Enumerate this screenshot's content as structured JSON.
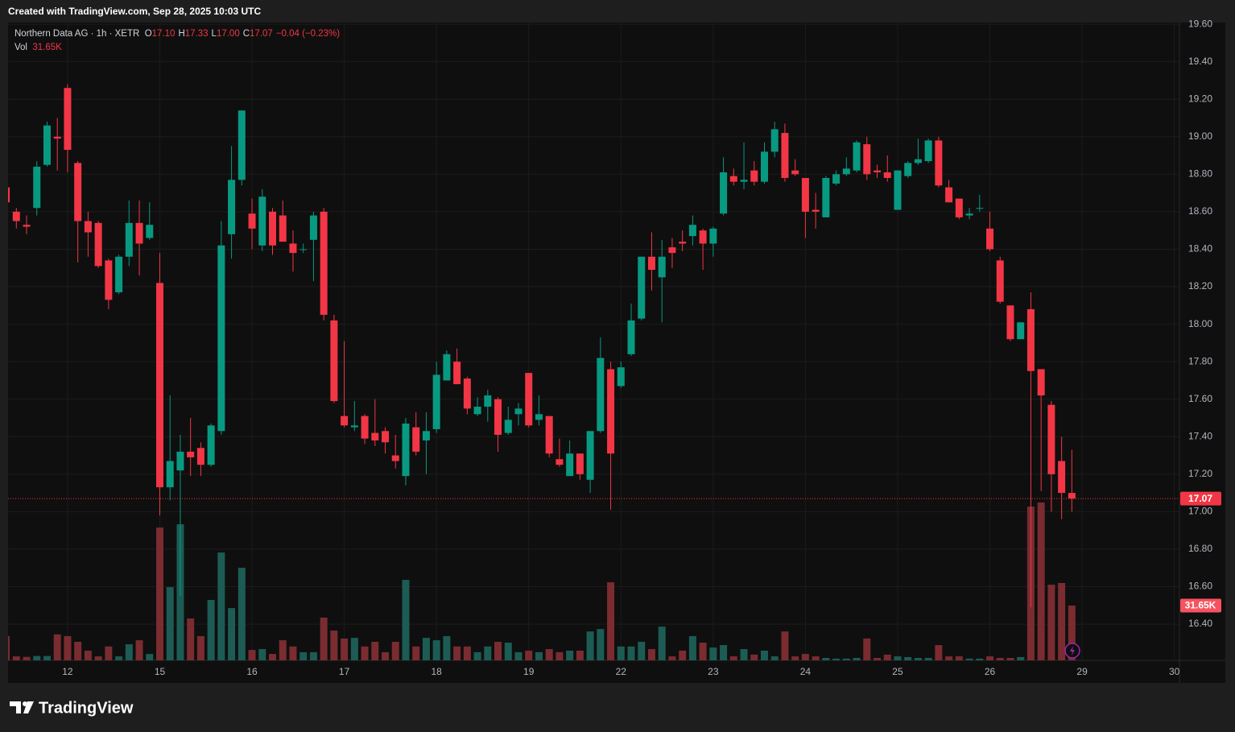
{
  "header": {
    "credit": "Created with TradingView.com, Sep 28, 2025 10:03 UTC",
    "symbol": "Northern Data AG · 1h · XETR",
    "ohlc": [
      {
        "key": "O",
        "value": "17.10"
      },
      {
        "key": "H",
        "value": "17.33"
      },
      {
        "key": "L",
        "value": "17.00"
      },
      {
        "key": "C",
        "value": "17.07"
      }
    ],
    "change": "−0.04 (−0.23%)",
    "volume_key": "Vol",
    "volume": "31.65K"
  },
  "brand": "TradingView",
  "chart_data": {
    "type": "candlestick",
    "categories": [
      null,
      null,
      null,
      null,
      null,
      null,
      "12",
      null,
      null,
      null,
      null,
      null,
      null,
      null,
      null,
      "15",
      null,
      null,
      null,
      null,
      null,
      null,
      null,
      null,
      "16",
      null,
      null,
      null,
      null,
      null,
      null,
      null,
      null,
      "17",
      null,
      null,
      null,
      null,
      null,
      null,
      null,
      null,
      "18",
      null,
      null,
      null,
      null,
      null,
      null,
      null,
      null,
      "19",
      null,
      null,
      null,
      null,
      null,
      null,
      null,
      null,
      "22",
      null,
      null,
      null,
      null,
      null,
      null,
      null,
      null,
      "23",
      null,
      null,
      null,
      null,
      null,
      null,
      null,
      null,
      "24",
      null,
      null,
      null,
      null,
      null,
      null,
      null,
      null,
      "25",
      null,
      null,
      null,
      null,
      null,
      null,
      null,
      null,
      "26",
      null,
      null,
      null,
      null,
      null,
      null,
      null,
      null,
      "29",
      null,
      null,
      null,
      null,
      null,
      null,
      null,
      null,
      "30"
    ],
    "open": [
      18.73,
      18.6,
      18.53,
      18.62,
      18.85,
      19.0,
      19.26,
      18.86,
      18.55,
      18.54,
      18.34,
      18.17,
      18.36,
      18.54,
      18.46,
      18.22,
      17.13,
      17.22,
      17.32,
      17.34,
      17.25,
      17.43,
      18.48,
      18.77,
      18.59,
      18.42,
      18.6,
      18.58,
      18.43,
      18.4,
      18.45,
      18.6,
      18.02,
      17.51,
      17.45,
      17.51,
      17.42,
      17.43,
      17.3,
      17.19,
      17.45,
      17.38,
      17.44,
      17.7,
      17.8,
      17.71,
      17.52,
      17.56,
      17.6,
      17.42,
      17.52,
      17.74,
      17.49,
      17.51,
      17.28,
      17.19,
      17.31,
      17.17,
      17.43,
      17.76,
      17.67,
      17.84,
      18.03,
      18.36,
      18.25,
      18.41,
      18.44,
      18.47,
      18.5,
      18.43,
      18.59,
      18.79,
      18.76,
      18.82,
      18.76,
      18.92,
      19.02,
      18.82,
      18.78,
      18.61,
      18.57,
      18.75,
      18.8,
      18.82,
      18.96,
      18.82,
      18.81,
      18.61,
      18.79,
      18.86,
      18.87,
      18.98,
      18.73,
      18.67,
      18.58,
      18.62,
      18.51,
      18.34,
      18.1,
      17.92,
      18.08,
      17.76,
      17.57,
      17.27,
      17.1,
      null,
      null,
      null,
      null,
      null,
      null,
      null,
      null,
      null,
      null
    ],
    "high": [
      18.78,
      18.62,
      18.58,
      18.87,
      19.08,
      19.1,
      19.28,
      18.87,
      18.6,
      18.55,
      18.35,
      18.37,
      18.66,
      18.66,
      18.65,
      18.38,
      17.62,
      17.41,
      17.5,
      17.37,
      17.47,
      18.55,
      18.95,
      19.14,
      18.67,
      18.72,
      18.62,
      18.66,
      18.5,
      18.43,
      18.6,
      18.62,
      18.05,
      17.91,
      17.59,
      17.52,
      17.6,
      17.45,
      17.41,
      17.5,
      17.53,
      17.53,
      17.8,
      17.86,
      17.87,
      17.72,
      17.61,
      17.65,
      17.61,
      17.56,
      17.58,
      17.74,
      17.62,
      17.51,
      17.39,
      17.38,
      17.31,
      17.43,
      17.93,
      17.8,
      17.8,
      18.11,
      18.36,
      18.49,
      18.45,
      18.46,
      18.5,
      18.58,
      18.51,
      18.52,
      18.89,
      18.83,
      18.97,
      18.87,
      18.97,
      19.08,
      19.07,
      18.88,
      18.78,
      18.7,
      18.79,
      18.82,
      18.89,
      18.98,
      19.0,
      18.85,
      18.9,
      18.82,
      18.87,
      18.99,
      18.99,
      19.0,
      18.77,
      18.67,
      18.62,
      18.69,
      18.6,
      18.36,
      18.1,
      18.01,
      18.17,
      17.76,
      17.59,
      17.4,
      17.33,
      null,
      null,
      null,
      null,
      null,
      null,
      null,
      null,
      null,
      null
    ],
    "low": [
      18.6,
      18.51,
      18.48,
      18.58,
      18.84,
      18.82,
      18.81,
      18.33,
      18.36,
      18.3,
      18.08,
      18.16,
      18.31,
      18.26,
      18.45,
      16.98,
      17.06,
      16.55,
      17.19,
      17.19,
      17.24,
      17.41,
      18.35,
      18.74,
      18.4,
      18.39,
      18.37,
      18.44,
      18.28,
      18.38,
      18.23,
      18.02,
      17.58,
      17.45,
      17.43,
      17.36,
      17.35,
      17.31,
      17.23,
      17.14,
      17.3,
      17.2,
      17.42,
      17.7,
      17.68,
      17.52,
      17.51,
      17.48,
      17.32,
      17.41,
      17.46,
      17.45,
      17.46,
      17.29,
      17.24,
      17.19,
      17.17,
      17.1,
      17.42,
      17.01,
      17.66,
      17.83,
      18.02,
      18.18,
      18.01,
      18.3,
      18.39,
      18.42,
      18.29,
      18.36,
      18.58,
      18.74,
      18.72,
      18.74,
      18.75,
      18.89,
      18.76,
      18.79,
      18.46,
      18.51,
      18.57,
      18.74,
      18.79,
      18.81,
      18.77,
      18.78,
      18.76,
      18.61,
      18.78,
      18.85,
      18.86,
      18.73,
      18.65,
      18.56,
      18.56,
      18.6,
      18.39,
      18.11,
      17.91,
      17.92,
      16.49,
      17.11,
      17.0,
      16.96,
      17.0,
      null,
      null,
      null,
      null,
      null,
      null,
      null,
      null,
      null,
      null
    ],
    "close": [
      18.65,
      18.55,
      18.52,
      18.84,
      19.06,
      18.99,
      18.93,
      18.55,
      18.49,
      18.31,
      18.13,
      18.36,
      18.54,
      18.43,
      18.53,
      17.13,
      17.27,
      17.32,
      17.29,
      17.25,
      17.46,
      18.42,
      18.77,
      19.14,
      18.51,
      18.68,
      18.42,
      18.44,
      18.38,
      18.4,
      18.58,
      18.05,
      17.59,
      17.46,
      17.46,
      17.39,
      17.38,
      17.37,
      17.27,
      17.47,
      17.32,
      17.43,
      17.73,
      17.84,
      17.68,
      17.55,
      17.56,
      17.62,
      17.41,
      17.49,
      17.55,
      17.46,
      17.52,
      17.31,
      17.25,
      17.31,
      17.2,
      17.43,
      17.82,
      17.31,
      17.77,
      18.02,
      18.36,
      18.29,
      18.36,
      18.38,
      18.43,
      18.53,
      18.43,
      18.51,
      18.81,
      18.76,
      18.77,
      18.76,
      18.92,
      19.04,
      18.78,
      18.8,
      18.6,
      18.6,
      18.78,
      18.8,
      18.83,
      18.97,
      18.8,
      18.81,
      18.78,
      18.82,
      18.86,
      18.88,
      18.98,
      18.74,
      18.65,
      18.57,
      18.59,
      18.62,
      18.4,
      18.12,
      17.92,
      18.01,
      17.75,
      17.62,
      17.2,
      17.1,
      17.07,
      null,
      null,
      null,
      null,
      null,
      null,
      null,
      null,
      null,
      null
    ],
    "volume": [
      14000,
      2300,
      2000,
      2500,
      2500,
      15000,
      14000,
      10700,
      5600,
      2300,
      8000,
      2300,
      9300,
      11600,
      3700,
      76700,
      42300,
      78600,
      24200,
      14000,
      34900,
      62300,
      30200,
      53500,
      6000,
      6500,
      3700,
      11600,
      8000,
      4700,
      4700,
      24700,
      17200,
      12600,
      13000,
      8000,
      10700,
      4700,
      10700,
      46500,
      8000,
      13000,
      11600,
      14000,
      8000,
      8000,
      4700,
      8000,
      10700,
      10200,
      4700,
      5600,
      4700,
      6500,
      4700,
      5600,
      5600,
      16700,
      18100,
      45100,
      8000,
      8000,
      10700,
      6500,
      19500,
      2300,
      5600,
      14000,
      10200,
      7400,
      8800,
      2300,
      6500,
      3300,
      5600,
      2300,
      16700,
      2300,
      3700,
      2300,
      1400,
      1000,
      1000,
      1400,
      12600,
      1400,
      3300,
      2300,
      1900,
      1400,
      1400,
      8800,
      2300,
      2300,
      1000,
      1000,
      2300,
      1400,
      1400,
      1900,
      88800,
      91200,
      43700,
      44700,
      31650,
      null,
      null,
      null,
      null,
      null,
      null,
      null,
      null,
      null,
      null
    ],
    "up_color": "#089981",
    "down_color": "#f23645",
    "up_volume_color": "#1c5c55",
    "down_volume_color": "#7a2c30",
    "ylim": [
      16.207,
      19.609
    ],
    "yticks": [
      {
        "value": 16.4,
        "label": "16.40"
      },
      {
        "value": 16.6,
        "label": "16.60"
      },
      {
        "value": 16.8,
        "label": "16.80"
      },
      {
        "value": 17,
        "label": "17.00"
      },
      {
        "value": 17.2,
        "label": "17.20"
      },
      {
        "value": 17.4,
        "label": "17.40"
      },
      {
        "value": 17.6,
        "label": "17.60"
      },
      {
        "value": 17.8,
        "label": "17.80"
      },
      {
        "value": 18,
        "label": "18.00"
      },
      {
        "value": 18.2,
        "label": "18.20"
      },
      {
        "value": 18.4,
        "label": "18.40"
      },
      {
        "value": 18.6,
        "label": "18.60"
      },
      {
        "value": 18.8,
        "label": "18.80"
      },
      {
        "value": 19,
        "label": "19.00"
      },
      {
        "value": 19.2,
        "label": "19.20"
      },
      {
        "value": 19.4,
        "label": "19.40"
      },
      {
        "value": 19.6,
        "label": "19.60"
      }
    ],
    "grid": true
  }
}
